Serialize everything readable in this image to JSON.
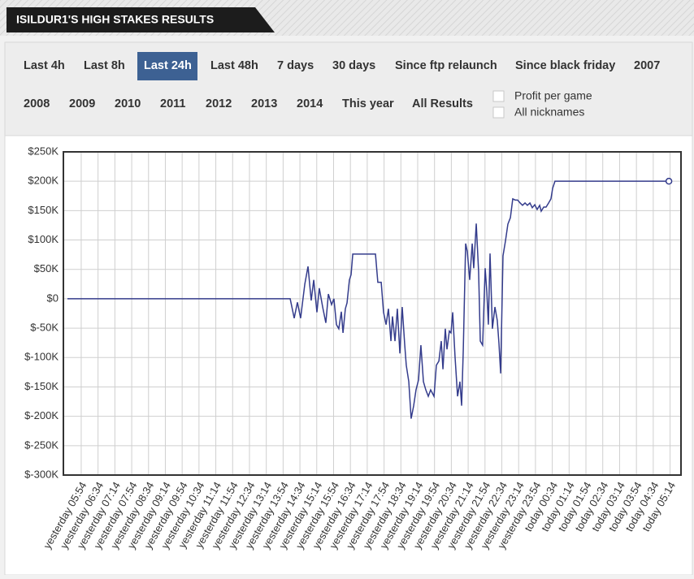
{
  "header": {
    "title": "ISILDUR1'S HIGH STAKES RESULTS"
  },
  "tabs": [
    {
      "label": "Last 4h"
    },
    {
      "label": "Last 8h"
    },
    {
      "label": "Last 24h",
      "active": true
    },
    {
      "label": "Last 48h"
    },
    {
      "label": "7 days"
    },
    {
      "label": "30 days"
    },
    {
      "label": "Since ftp relaunch"
    },
    {
      "label": "Since black friday"
    },
    {
      "label": "2007"
    },
    {
      "label": "2008"
    },
    {
      "label": "2009"
    },
    {
      "label": "2010"
    },
    {
      "label": "2011"
    },
    {
      "label": "2012"
    },
    {
      "label": "2013"
    },
    {
      "label": "2014"
    },
    {
      "label": "This year"
    },
    {
      "label": "All Results"
    }
  ],
  "options": [
    "Profit per game",
    "All nicknames"
  ],
  "chart_data": {
    "type": "line",
    "color": "#343c8c",
    "grid": true,
    "ylim": [
      -300000,
      250000
    ],
    "yticks": [
      {
        "value": 250000,
        "label": "$250K"
      },
      {
        "value": 200000,
        "label": "$200K"
      },
      {
        "value": 150000,
        "label": "$150K"
      },
      {
        "value": 100000,
        "label": "$100K"
      },
      {
        "value": 50000,
        "label": "$50K"
      },
      {
        "value": 0,
        "label": "$0"
      },
      {
        "value": -50000,
        "label": "$-50K"
      },
      {
        "value": -100000,
        "label": "$-100K"
      },
      {
        "value": -150000,
        "label": "$-150K"
      },
      {
        "value": -200000,
        "label": "$-200K"
      },
      {
        "value": -250000,
        "label": "$-250K"
      },
      {
        "value": -300000,
        "label": "$-300K"
      }
    ],
    "xlim": [
      -1.06,
      35.65
    ],
    "xticks": [
      {
        "value": 0,
        "label": "yesterday 05:54"
      },
      {
        "value": 1,
        "label": "yesterday 06:34"
      },
      {
        "value": 2,
        "label": "yesterday 07:14"
      },
      {
        "value": 3,
        "label": "yesterday 07:54"
      },
      {
        "value": 4,
        "label": "yesterday 08:34"
      },
      {
        "value": 5,
        "label": "yesterday 09:14"
      },
      {
        "value": 6,
        "label": "yesterday 09:54"
      },
      {
        "value": 7,
        "label": "yesterday 10:34"
      },
      {
        "value": 8,
        "label": "yesterday 11:14"
      },
      {
        "value": 9,
        "label": "yesterday 11:54"
      },
      {
        "value": 10,
        "label": "yesterday 12:34"
      },
      {
        "value": 11,
        "label": "yesterday 13:14"
      },
      {
        "value": 12,
        "label": "yesterday 13:54"
      },
      {
        "value": 13,
        "label": "yesterday 14:34"
      },
      {
        "value": 14,
        "label": "yesterday 15:14"
      },
      {
        "value": 15,
        "label": "yesterday 15:54"
      },
      {
        "value": 16,
        "label": "yesterday 16:34"
      },
      {
        "value": 17,
        "label": "yesterday 17:14"
      },
      {
        "value": 18,
        "label": "yesterday 17:54"
      },
      {
        "value": 19,
        "label": "yesterday 18:34"
      },
      {
        "value": 20,
        "label": "yesterday 19:14"
      },
      {
        "value": 21,
        "label": "yesterday 19:54"
      },
      {
        "value": 22,
        "label": "yesterday 20:34"
      },
      {
        "value": 23,
        "label": "yesterday 21:14"
      },
      {
        "value": 24,
        "label": "yesterday 21:54"
      },
      {
        "value": 25,
        "label": "yesterday 22:34"
      },
      {
        "value": 26,
        "label": "yesterday 23:14"
      },
      {
        "value": 27,
        "label": "yesterday 23:54"
      },
      {
        "value": 28,
        "label": "today 00:34"
      },
      {
        "value": 29,
        "label": "today 01:14"
      },
      {
        "value": 30,
        "label": "today 01:54"
      },
      {
        "value": 31,
        "label": "today 02:34"
      },
      {
        "value": 32,
        "label": "today 03:14"
      },
      {
        "value": 33,
        "label": "today 03:54"
      },
      {
        "value": 34,
        "label": "today 04:34"
      },
      {
        "value": 35,
        "label": "today 05:14"
      }
    ],
    "x": [
      -0.82,
      12.42,
      12.66,
      12.85,
      13.04,
      13.29,
      13.48,
      13.67,
      13.82,
      14.01,
      14.15,
      14.35,
      14.54,
      14.69,
      14.88,
      15.02,
      15.17,
      15.31,
      15.46,
      15.56,
      15.7,
      15.8,
      15.94,
      16.04,
      16.14,
      17.39,
      17.49,
      17.63,
      17.83,
      17.97,
      18.12,
      18.26,
      18.41,
      18.5,
      18.65,
      18.79,
      18.94,
      19.08,
      19.23,
      19.32,
      19.47,
      19.61,
      19.76,
      19.9,
      20.05,
      20.19,
      20.34,
      20.48,
      20.63,
      20.77,
      20.97,
      21.11,
      21.26,
      21.4,
      21.5,
      21.64,
      21.74,
      21.88,
      21.98,
      22.08,
      22.22,
      22.37,
      22.51,
      22.61,
      22.71,
      22.85,
      22.95,
      23.09,
      23.24,
      23.33,
      23.48,
      23.62,
      23.72,
      23.86,
      24.01,
      24.11,
      24.2,
      24.3,
      24.44,
      24.59,
      24.73,
      24.83,
      24.93,
      25.07,
      25.22,
      25.36,
      25.51,
      25.65,
      25.8,
      25.94,
      26.09,
      26.23,
      26.38,
      26.52,
      26.67,
      26.81,
      26.96,
      27.1,
      27.25,
      27.34,
      27.49,
      27.63,
      27.78,
      27.92,
      28.02,
      28.16,
      34.93
    ],
    "values": [
      0,
      0,
      -33000,
      -6000,
      -33000,
      25000,
      55000,
      -3000,
      32000,
      -23000,
      18000,
      -14000,
      -41000,
      8000,
      -10000,
      0,
      -44000,
      -51000,
      -22000,
      -58000,
      -17000,
      -7000,
      32000,
      41000,
      76000,
      76000,
      76000,
      28000,
      28000,
      -23000,
      -44000,
      -17000,
      -72000,
      -30000,
      -72000,
      -17000,
      -93000,
      -14000,
      -79000,
      -113000,
      -141000,
      -204000,
      -182000,
      -155000,
      -138000,
      -79000,
      -141000,
      -155000,
      -166000,
      -155000,
      -166000,
      -113000,
      -106000,
      -72000,
      -120000,
      -51000,
      -86000,
      -55000,
      -58000,
      -23000,
      -99000,
      -166000,
      -141000,
      -182000,
      -86000,
      94000,
      80000,
      32000,
      94000,
      52000,
      128000,
      46000,
      -72000,
      -79000,
      52000,
      11000,
      -44000,
      77000,
      -51000,
      -14000,
      -37000,
      -76000,
      -127000,
      73000,
      99000,
      127000,
      138000,
      170000,
      168000,
      168000,
      163000,
      159000,
      163000,
      159000,
      163000,
      155000,
      160000,
      152000,
      159000,
      149000,
      156000,
      156000,
      163000,
      170000,
      188000,
      200000,
      200000
    ]
  }
}
